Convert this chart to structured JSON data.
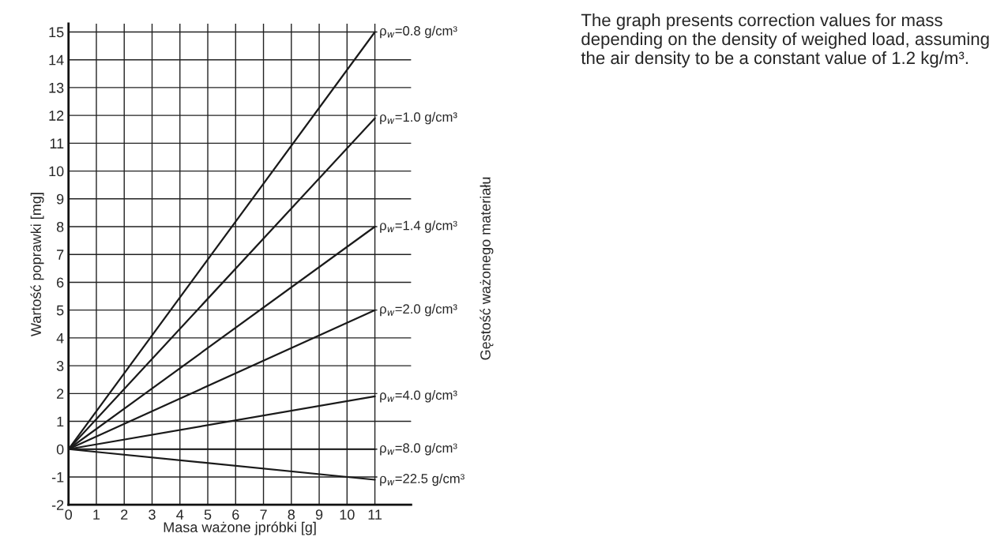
{
  "chart_data": {
    "type": "line",
    "ylabel": "Wartość poprawki [mg]",
    "xlabel": "Masa ważone jpróbki [g]",
    "y2label": "Gęstość ważonego materiału",
    "x": [
      0,
      11
    ],
    "series": [
      {
        "name": "ρ$_{w}$=0.8 g/cm³",
        "color": "#1a1a1a",
        "values": [
          0,
          15
        ]
      },
      {
        "name": "ρ$_{w}$=1.0 g/cm³",
        "color": "#1a1a1a",
        "values": [
          0,
          11.9
        ]
      },
      {
        "name": "ρ$_{w}$=1.4 g/cm³",
        "color": "#1a1a1a",
        "values": [
          0,
          8
        ]
      },
      {
        "name": "ρ$_{w}$=2.0 g/cm³",
        "color": "#1a1a1a",
        "values": [
          0,
          5
        ]
      },
      {
        "name": "ρ$_{w}$=4.0 g/cm³",
        "color": "#1a1a1a",
        "values": [
          0,
          1.9
        ]
      },
      {
        "name": "ρ$_{w}$=8.0 g/cm³",
        "color": "#1a1a1a",
        "values": [
          0,
          0
        ]
      },
      {
        "name": "ρ$_{w}$=22.5 g/cm³",
        "color": "#1a1a1a",
        "values": [
          0,
          -1.1
        ]
      }
    ],
    "xlim": [
      0,
      12.3
    ],
    "xticks": [
      0,
      1,
      2,
      3,
      4,
      5,
      6,
      7,
      8,
      9,
      10,
      11
    ],
    "ylim": [
      -2,
      15.3
    ],
    "yticks": [
      -2,
      -1,
      0,
      1,
      2,
      3,
      4,
      5,
      6,
      7,
      8,
      9,
      10,
      11,
      12,
      13,
      14,
      15
    ],
    "grid": true,
    "legend": false,
    "marker": "none",
    "line_style": "solid",
    "annotations": [
      "The graph presents correction values for mass depending on the density of weighed load, assuming the air density to be a constant value of 1.2 kg/m³."
    ]
  }
}
